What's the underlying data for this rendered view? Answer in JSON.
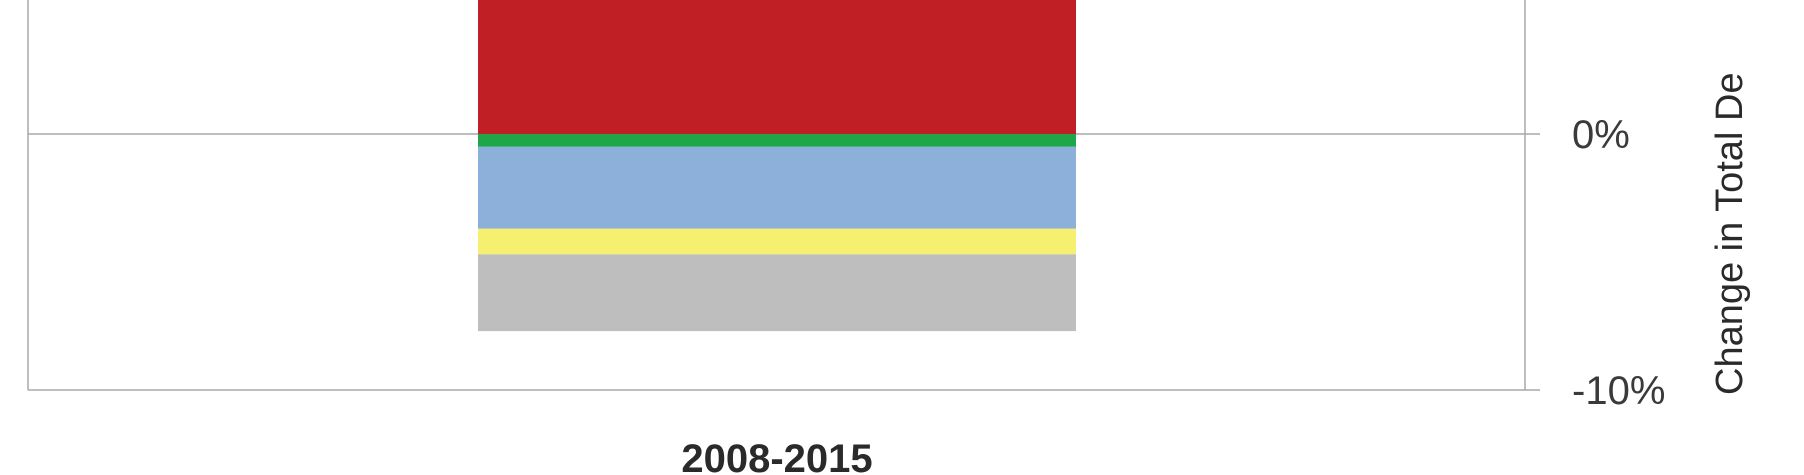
{
  "chart_data": {
    "type": "bar",
    "stacked": true,
    "categories": [
      "2008-2015"
    ],
    "series": [
      {
        "values": [
          9.0
        ],
        "color": "#c01f26"
      },
      {
        "values": [
          -0.5
        ],
        "color": "#1ea64a"
      },
      {
        "values": [
          -3.2
        ],
        "color": "#8db0db"
      },
      {
        "values": [
          -1.0
        ],
        "color": "#f5f070"
      },
      {
        "values": [
          -3.0
        ],
        "color": "#bebebe"
      }
    ],
    "yticks": [
      {
        "value": 0,
        "label": "0%"
      },
      {
        "value": -10,
        "label": "-10%"
      }
    ],
    "ylabel": "Change in Total De",
    "y_axis_side": "right",
    "grid": true
  }
}
